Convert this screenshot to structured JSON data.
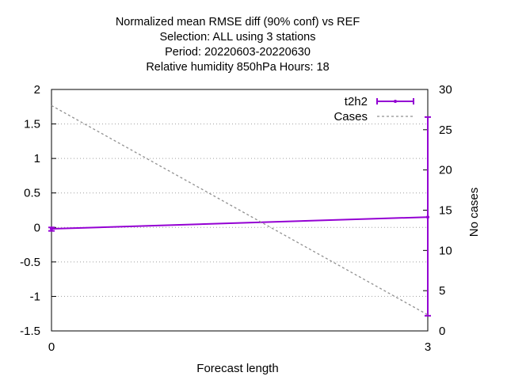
{
  "chart_data": {
    "type": "line",
    "title_lines": [
      "Normalized mean RMSE diff (90% conf) vs REF",
      "Selection: ALL using     3 stations",
      "Period: 20220603-20220630",
      "Relative humidity 850hPa   Hours:  18"
    ],
    "xlabel": "Forecast length",
    "ylabel": "",
    "y2label": "No cases",
    "xlim": [
      0,
      3
    ],
    "ylim": [
      -1.5,
      2
    ],
    "y2lim": [
      0,
      30
    ],
    "x_ticks": [
      "0",
      "3"
    ],
    "y_ticks": [
      "2",
      "1.5",
      "1",
      "0.5",
      "0",
      "-0.5",
      "-1",
      "-1.5"
    ],
    "y2_ticks": [
      "30",
      "25",
      "20",
      "15",
      "10",
      "5",
      "0"
    ],
    "grid": "horizontal dotted",
    "legend_position": "top-right",
    "series": [
      {
        "name": "t2h2",
        "axis": "y",
        "color": "#9400d3",
        "x": [
          0,
          3
        ],
        "y": [
          -0.02,
          0.15
        ],
        "errorbar_upper": [
          0.0,
          1.6
        ],
        "errorbar_lower": [
          -0.05,
          -1.28
        ]
      },
      {
        "name": "Cases",
        "axis": "y2",
        "color": "#909090",
        "style": "dashed",
        "x": [
          0,
          3
        ],
        "y": [
          28,
          2
        ]
      }
    ]
  }
}
